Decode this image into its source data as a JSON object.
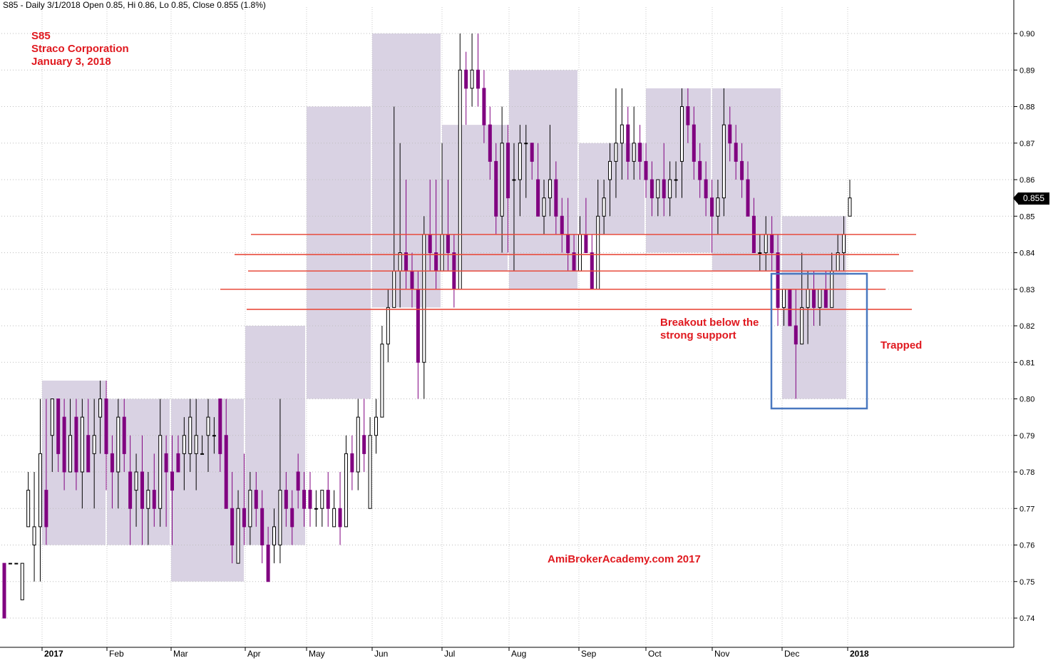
{
  "header": {
    "text": "S85 - Daily 3/1/2018 Open 0.85, Hi 0.86, Lo 0.85, Close 0.855 (1.8%)"
  },
  "title_block": {
    "ticker": "S85",
    "company": "Straco Corporation",
    "date": "January 3, 2018"
  },
  "annotations": {
    "breakout_line1": "Breakout below the",
    "breakout_line2": "strong support",
    "trapped": "Trapped",
    "watermark": "AmiBrokerAcademy.com  2017"
  },
  "last_price_label": "0.855",
  "colors": {
    "down_candle": "#800080",
    "up_candle": "#000000",
    "range_box": "#d5cde0",
    "support_line": "#e84c3d",
    "annotation_text": "#e0191f",
    "highlight_box": "#4a78c0"
  },
  "chart_data": {
    "type": "candlestick",
    "ylim": [
      0.735,
      0.905
    ],
    "y_ticks": [
      "0.90",
      "0.89",
      "0.88",
      "0.87",
      "0.86",
      "0.85",
      "0.84",
      "0.83",
      "0.82",
      "0.81",
      "0.80",
      "0.79",
      "0.78",
      "0.77",
      "0.76",
      "0.75",
      "0.74"
    ],
    "x_month_labels": [
      "2017",
      "Feb",
      "Mar",
      "Apr",
      "May",
      "Jun",
      "Jul",
      "Aug",
      "Sep",
      "Oct",
      "Nov",
      "Dec",
      "2018"
    ],
    "bold_x_labels": [
      "2017",
      "2018"
    ],
    "support_levels": [
      0.845,
      0.8395,
      0.835,
      0.83,
      0.8245
    ],
    "monthly_ranges": [
      {
        "month": "Jan 2017",
        "low": 0.76,
        "high": 0.805
      },
      {
        "month": "Feb 2017",
        "low": 0.76,
        "high": 0.8
      },
      {
        "month": "Mar 2017",
        "low": 0.75,
        "high": 0.8
      },
      {
        "month": "Apr 2017",
        "low": 0.76,
        "high": 0.82
      },
      {
        "month": "May 2017",
        "low": 0.8,
        "high": 0.88
      },
      {
        "month": "Jun 2017",
        "low": 0.825,
        "high": 0.9
      },
      {
        "month": "Jul 2017",
        "low": 0.835,
        "high": 0.875
      },
      {
        "month": "Aug 2017",
        "low": 0.83,
        "high": 0.89
      },
      {
        "month": "Sep 2017",
        "low": 0.845,
        "high": 0.87
      },
      {
        "month": "Oct 2017",
        "low": 0.84,
        "high": 0.885
      },
      {
        "month": "Nov 2017",
        "low": 0.835,
        "high": 0.885
      },
      {
        "month": "Dec 2017",
        "low": 0.8,
        "high": 0.85
      }
    ],
    "candles": [
      {
        "o": 0.755,
        "h": 0.755,
        "l": 0.74,
        "c": 0.74
      },
      {
        "o": 0.755,
        "h": 0.755,
        "l": 0.755,
        "c": 0.755
      },
      {
        "o": 0.755,
        "h": 0.755,
        "l": 0.755,
        "c": 0.755
      },
      {
        "o": 0.745,
        "h": 0.755,
        "l": 0.745,
        "c": 0.755
      },
      {
        "o": 0.765,
        "h": 0.78,
        "l": 0.765,
        "c": 0.775
      },
      {
        "o": 0.76,
        "h": 0.78,
        "l": 0.75,
        "c": 0.765
      },
      {
        "o": 0.765,
        "h": 0.8,
        "l": 0.75,
        "c": 0.785
      },
      {
        "o": 0.775,
        "h": 0.8,
        "l": 0.76,
        "c": 0.765
      },
      {
        "o": 0.79,
        "h": 0.8,
        "l": 0.78,
        "c": 0.8
      },
      {
        "o": 0.8,
        "h": 0.8,
        "l": 0.78,
        "c": 0.785
      },
      {
        "o": 0.795,
        "h": 0.8,
        "l": 0.775,
        "c": 0.78
      },
      {
        "o": 0.78,
        "h": 0.8,
        "l": 0.78,
        "c": 0.79
      },
      {
        "o": 0.795,
        "h": 0.8,
        "l": 0.775,
        "c": 0.78
      },
      {
        "o": 0.78,
        "h": 0.8,
        "l": 0.77,
        "c": 0.795
      },
      {
        "o": 0.79,
        "h": 0.8,
        "l": 0.78,
        "c": 0.78
      },
      {
        "o": 0.785,
        "h": 0.8,
        "l": 0.77,
        "c": 0.79
      },
      {
        "o": 0.795,
        "h": 0.805,
        "l": 0.785,
        "c": 0.8
      },
      {
        "o": 0.8,
        "h": 0.805,
        "l": 0.775,
        "c": 0.785
      },
      {
        "o": 0.785,
        "h": 0.79,
        "l": 0.77,
        "c": 0.78
      },
      {
        "o": 0.78,
        "h": 0.8,
        "l": 0.77,
        "c": 0.795
      },
      {
        "o": 0.795,
        "h": 0.8,
        "l": 0.78,
        "c": 0.785
      },
      {
        "o": 0.78,
        "h": 0.79,
        "l": 0.76,
        "c": 0.77
      },
      {
        "o": 0.775,
        "h": 0.785,
        "l": 0.765,
        "c": 0.78
      },
      {
        "o": 0.78,
        "h": 0.79,
        "l": 0.76,
        "c": 0.77
      },
      {
        "o": 0.77,
        "h": 0.78,
        "l": 0.76,
        "c": 0.775
      },
      {
        "o": 0.775,
        "h": 0.785,
        "l": 0.765,
        "c": 0.77
      },
      {
        "o": 0.77,
        "h": 0.8,
        "l": 0.765,
        "c": 0.79
      },
      {
        "o": 0.785,
        "h": 0.79,
        "l": 0.765,
        "c": 0.78
      },
      {
        "o": 0.78,
        "h": 0.79,
        "l": 0.76,
        "c": 0.775
      },
      {
        "o": 0.785,
        "h": 0.79,
        "l": 0.78,
        "c": 0.78
      },
      {
        "o": 0.785,
        "h": 0.795,
        "l": 0.775,
        "c": 0.79
      },
      {
        "o": 0.785,
        "h": 0.8,
        "l": 0.78,
        "c": 0.795
      },
      {
        "o": 0.785,
        "h": 0.8,
        "l": 0.775,
        "c": 0.79
      },
      {
        "o": 0.785,
        "h": 0.79,
        "l": 0.785,
        "c": 0.785
      },
      {
        "o": 0.79,
        "h": 0.8,
        "l": 0.78,
        "c": 0.795
      },
      {
        "o": 0.79,
        "h": 0.795,
        "l": 0.785,
        "c": 0.79
      },
      {
        "o": 0.8,
        "h": 0.8,
        "l": 0.78,
        "c": 0.785
      },
      {
        "o": 0.79,
        "h": 0.8,
        "l": 0.77,
        "c": 0.77
      },
      {
        "o": 0.77,
        "h": 0.78,
        "l": 0.755,
        "c": 0.76
      },
      {
        "o": 0.755,
        "h": 0.775,
        "l": 0.755,
        "c": 0.77
      },
      {
        "o": 0.77,
        "h": 0.785,
        "l": 0.76,
        "c": 0.765
      },
      {
        "o": 0.765,
        "h": 0.78,
        "l": 0.76,
        "c": 0.775
      },
      {
        "o": 0.775,
        "h": 0.78,
        "l": 0.765,
        "c": 0.77
      },
      {
        "o": 0.77,
        "h": 0.775,
        "l": 0.755,
        "c": 0.76
      },
      {
        "o": 0.76,
        "h": 0.765,
        "l": 0.75,
        "c": 0.75
      },
      {
        "o": 0.76,
        "h": 0.77,
        "l": 0.755,
        "c": 0.765
      },
      {
        "o": 0.76,
        "h": 0.8,
        "l": 0.755,
        "c": 0.775
      },
      {
        "o": 0.775,
        "h": 0.78,
        "l": 0.765,
        "c": 0.77
      },
      {
        "o": 0.77,
        "h": 0.775,
        "l": 0.76,
        "c": 0.765
      },
      {
        "o": 0.78,
        "h": 0.785,
        "l": 0.77,
        "c": 0.775
      },
      {
        "o": 0.775,
        "h": 0.78,
        "l": 0.765,
        "c": 0.77
      },
      {
        "o": 0.775,
        "h": 0.78,
        "l": 0.765,
        "c": 0.77
      },
      {
        "o": 0.77,
        "h": 0.775,
        "l": 0.765,
        "c": 0.77
      },
      {
        "o": 0.77,
        "h": 0.775,
        "l": 0.765,
        "c": 0.775
      },
      {
        "o": 0.775,
        "h": 0.78,
        "l": 0.765,
        "c": 0.77
      },
      {
        "o": 0.765,
        "h": 0.775,
        "l": 0.765,
        "c": 0.77
      },
      {
        "o": 0.77,
        "h": 0.78,
        "l": 0.76,
        "c": 0.765
      },
      {
        "o": 0.765,
        "h": 0.79,
        "l": 0.765,
        "c": 0.785
      },
      {
        "o": 0.785,
        "h": 0.79,
        "l": 0.775,
        "c": 0.78
      },
      {
        "o": 0.78,
        "h": 0.8,
        "l": 0.775,
        "c": 0.795
      },
      {
        "o": 0.79,
        "h": 0.8,
        "l": 0.78,
        "c": 0.785
      },
      {
        "o": 0.77,
        "h": 0.795,
        "l": 0.77,
        "c": 0.79
      },
      {
        "o": 0.79,
        "h": 0.8,
        "l": 0.785,
        "c": 0.795
      },
      {
        "o": 0.795,
        "h": 0.82,
        "l": 0.795,
        "c": 0.815
      },
      {
        "o": 0.815,
        "h": 0.83,
        "l": 0.81,
        "c": 0.825
      },
      {
        "o": 0.825,
        "h": 0.88,
        "l": 0.825,
        "c": 0.835
      },
      {
        "o": 0.835,
        "h": 0.87,
        "l": 0.825,
        "c": 0.84
      },
      {
        "o": 0.84,
        "h": 0.86,
        "l": 0.83,
        "c": 0.835
      },
      {
        "o": 0.835,
        "h": 0.84,
        "l": 0.825,
        "c": 0.83
      },
      {
        "o": 0.83,
        "h": 0.835,
        "l": 0.8,
        "c": 0.81
      },
      {
        "o": 0.81,
        "h": 0.85,
        "l": 0.8,
        "c": 0.845
      },
      {
        "o": 0.845,
        "h": 0.86,
        "l": 0.835,
        "c": 0.84
      },
      {
        "o": 0.84,
        "h": 0.86,
        "l": 0.83,
        "c": 0.835
      },
      {
        "o": 0.835,
        "h": 0.87,
        "l": 0.835,
        "c": 0.845
      },
      {
        "o": 0.845,
        "h": 0.86,
        "l": 0.835,
        "c": 0.84
      },
      {
        "o": 0.84,
        "h": 0.845,
        "l": 0.825,
        "c": 0.83
      },
      {
        "o": 0.83,
        "h": 0.9,
        "l": 0.83,
        "c": 0.89
      },
      {
        "o": 0.89,
        "h": 0.895,
        "l": 0.875,
        "c": 0.885
      },
      {
        "o": 0.885,
        "h": 0.9,
        "l": 0.88,
        "c": 0.89
      },
      {
        "o": 0.89,
        "h": 0.9,
        "l": 0.88,
        "c": 0.885
      },
      {
        "o": 0.885,
        "h": 0.89,
        "l": 0.87,
        "c": 0.875
      },
      {
        "o": 0.875,
        "h": 0.88,
        "l": 0.86,
        "c": 0.865
      },
      {
        "o": 0.865,
        "h": 0.87,
        "l": 0.845,
        "c": 0.85
      },
      {
        "o": 0.85,
        "h": 0.88,
        "l": 0.84,
        "c": 0.87
      },
      {
        "o": 0.87,
        "h": 0.875,
        "l": 0.84,
        "c": 0.855
      },
      {
        "o": 0.86,
        "h": 0.87,
        "l": 0.835,
        "c": 0.86
      },
      {
        "o": 0.86,
        "h": 0.875,
        "l": 0.85,
        "c": 0.87
      },
      {
        "o": 0.87,
        "h": 0.875,
        "l": 0.855,
        "c": 0.87
      },
      {
        "o": 0.87,
        "h": 0.87,
        "l": 0.86,
        "c": 0.865
      },
      {
        "o": 0.86,
        "h": 0.87,
        "l": 0.85,
        "c": 0.85
      },
      {
        "o": 0.85,
        "h": 0.86,
        "l": 0.845,
        "c": 0.855
      },
      {
        "o": 0.855,
        "h": 0.875,
        "l": 0.85,
        "c": 0.86
      },
      {
        "o": 0.86,
        "h": 0.865,
        "l": 0.845,
        "c": 0.85
      },
      {
        "o": 0.85,
        "h": 0.855,
        "l": 0.84,
        "c": 0.845
      },
      {
        "o": 0.845,
        "h": 0.855,
        "l": 0.835,
        "c": 0.84
      },
      {
        "o": 0.84,
        "h": 0.845,
        "l": 0.835,
        "c": 0.835
      },
      {
        "o": 0.835,
        "h": 0.85,
        "l": 0.835,
        "c": 0.845
      },
      {
        "o": 0.845,
        "h": 0.855,
        "l": 0.84,
        "c": 0.84
      },
      {
        "o": 0.84,
        "h": 0.845,
        "l": 0.83,
        "c": 0.83
      },
      {
        "o": 0.83,
        "h": 0.86,
        "l": 0.83,
        "c": 0.85
      },
      {
        "o": 0.85,
        "h": 0.86,
        "l": 0.845,
        "c": 0.855
      },
      {
        "o": 0.86,
        "h": 0.87,
        "l": 0.85,
        "c": 0.865
      },
      {
        "o": 0.865,
        "h": 0.885,
        "l": 0.855,
        "c": 0.87
      },
      {
        "o": 0.87,
        "h": 0.885,
        "l": 0.86,
        "c": 0.875
      },
      {
        "o": 0.875,
        "h": 0.88,
        "l": 0.86,
        "c": 0.865
      },
      {
        "o": 0.865,
        "h": 0.88,
        "l": 0.86,
        "c": 0.87
      },
      {
        "o": 0.87,
        "h": 0.875,
        "l": 0.86,
        "c": 0.865
      },
      {
        "o": 0.865,
        "h": 0.87,
        "l": 0.855,
        "c": 0.86
      },
      {
        "o": 0.86,
        "h": 0.865,
        "l": 0.85,
        "c": 0.855
      },
      {
        "o": 0.855,
        "h": 0.86,
        "l": 0.85,
        "c": 0.86
      },
      {
        "o": 0.86,
        "h": 0.87,
        "l": 0.85,
        "c": 0.855
      },
      {
        "o": 0.855,
        "h": 0.865,
        "l": 0.85,
        "c": 0.86
      },
      {
        "o": 0.86,
        "h": 0.865,
        "l": 0.855,
        "c": 0.86
      },
      {
        "o": 0.865,
        "h": 0.885,
        "l": 0.855,
        "c": 0.88
      },
      {
        "o": 0.88,
        "h": 0.885,
        "l": 0.87,
        "c": 0.875
      },
      {
        "o": 0.875,
        "h": 0.88,
        "l": 0.86,
        "c": 0.865
      },
      {
        "o": 0.865,
        "h": 0.87,
        "l": 0.855,
        "c": 0.86
      },
      {
        "o": 0.86,
        "h": 0.865,
        "l": 0.85,
        "c": 0.855
      },
      {
        "o": 0.855,
        "h": 0.86,
        "l": 0.84,
        "c": 0.85
      },
      {
        "o": 0.85,
        "h": 0.86,
        "l": 0.845,
        "c": 0.855
      },
      {
        "o": 0.855,
        "h": 0.885,
        "l": 0.85,
        "c": 0.875
      },
      {
        "o": 0.875,
        "h": 0.88,
        "l": 0.865,
        "c": 0.87
      },
      {
        "o": 0.87,
        "h": 0.875,
        "l": 0.86,
        "c": 0.865
      },
      {
        "o": 0.865,
        "h": 0.87,
        "l": 0.855,
        "c": 0.86
      },
      {
        "o": 0.86,
        "h": 0.865,
        "l": 0.85,
        "c": 0.85
      },
      {
        "o": 0.85,
        "h": 0.855,
        "l": 0.84,
        "c": 0.84
      },
      {
        "o": 0.84,
        "h": 0.845,
        "l": 0.835,
        "c": 0.84
      },
      {
        "o": 0.84,
        "h": 0.85,
        "l": 0.835,
        "c": 0.845
      },
      {
        "o": 0.845,
        "h": 0.85,
        "l": 0.835,
        "c": 0.84
      },
      {
        "o": 0.84,
        "h": 0.845,
        "l": 0.82,
        "c": 0.825
      },
      {
        "o": 0.825,
        "h": 0.83,
        "l": 0.82,
        "c": 0.83
      },
      {
        "o": 0.83,
        "h": 0.83,
        "l": 0.82,
        "c": 0.82
      },
      {
        "o": 0.82,
        "h": 0.83,
        "l": 0.8,
        "c": 0.815
      },
      {
        "o": 0.815,
        "h": 0.84,
        "l": 0.815,
        "c": 0.825
      },
      {
        "o": 0.825,
        "h": 0.835,
        "l": 0.815,
        "c": 0.83
      },
      {
        "o": 0.83,
        "h": 0.835,
        "l": 0.82,
        "c": 0.825
      },
      {
        "o": 0.825,
        "h": 0.83,
        "l": 0.82,
        "c": 0.83
      },
      {
        "o": 0.83,
        "h": 0.835,
        "l": 0.825,
        "c": 0.825
      },
      {
        "o": 0.825,
        "h": 0.84,
        "l": 0.825,
        "c": 0.835
      },
      {
        "o": 0.835,
        "h": 0.845,
        "l": 0.835,
        "c": 0.84
      },
      {
        "o": 0.84,
        "h": 0.85,
        "l": 0.835,
        "c": 0.845
      },
      {
        "o": 0.85,
        "h": 0.86,
        "l": 0.85,
        "c": 0.855
      }
    ]
  }
}
